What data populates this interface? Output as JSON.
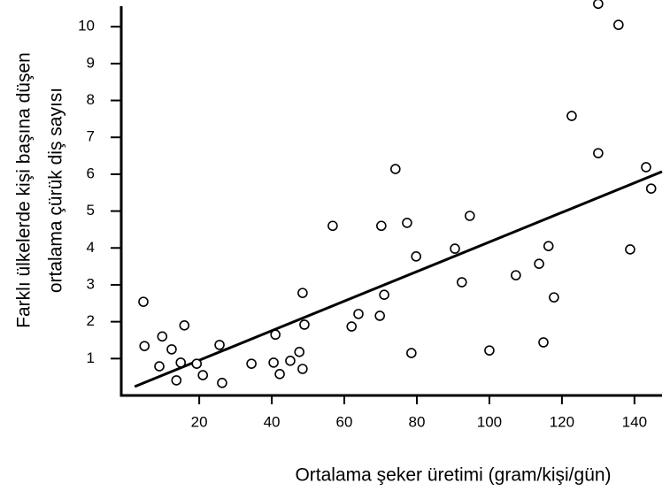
{
  "chart_data": {
    "type": "scatter",
    "x_label": "Ortalama şeker üretimi (gram/kişi/gün)",
    "y_label": [
      "Farklı ülkelerde kişi başına düşen",
      "ortalama çürük diş sayısı"
    ],
    "x": [
      4.6,
      4.9,
      9.8,
      9.0,
      12.4,
      15.9,
      13.7,
      14.9,
      19.3,
      21.0,
      25.6,
      26.3,
      34.4,
      41.0,
      40.5,
      42.2,
      45.1,
      47.6,
      48.5,
      48.5,
      49.0,
      56.8,
      62.0,
      63.9,
      69.8,
      70.2,
      71.0,
      74.1,
      77.3,
      78.5,
      79.8,
      90.5,
      92.4,
      94.6,
      100.0,
      107.3,
      113.7,
      114.9,
      116.3,
      117.8,
      122.7,
      130.0,
      130.0,
      135.6,
      138.8,
      143.2,
      144.6
    ],
    "values": [
      2.54,
      1.34,
      1.6,
      0.79,
      1.25,
      1.9,
      0.41,
      0.89,
      0.86,
      0.55,
      1.37,
      0.34,
      0.86,
      1.65,
      0.89,
      0.58,
      0.94,
      1.18,
      0.72,
      2.78,
      1.92,
      4.6,
      1.87,
      2.21,
      2.16,
      4.6,
      2.73,
      6.14,
      4.68,
      1.15,
      3.77,
      3.98,
      3.07,
      4.87,
      1.22,
      3.26,
      3.57,
      1.44,
      4.05,
      2.66,
      7.58,
      6.57,
      10.62,
      10.05,
      3.96,
      6.19,
      5.61
    ],
    "color": "#000000",
    "trendline": {
      "x": [
        2.2,
        147.6
      ],
      "y": [
        0.24,
        6.07
      ]
    },
    "xlim": [
      -1.5,
      147.6
    ],
    "ylim": [
      0,
      10.7
    ],
    "xticks": [
      20,
      40,
      60,
      80,
      100,
      120,
      140
    ],
    "yticks": [
      1,
      2,
      3,
      4,
      5,
      6,
      7,
      8,
      9,
      10
    ],
    "grid": false
  }
}
